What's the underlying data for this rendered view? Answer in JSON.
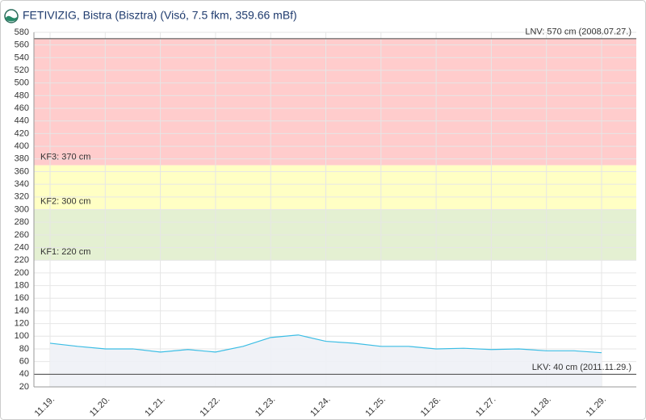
{
  "chart_data": {
    "type": "line",
    "title": "FETIVIZIG, Bistra (Bisztra) (Visó, 7.5 fkm, 359.66 mBf)",
    "categories": [
      "11.19.",
      null,
      "11.20.",
      null,
      "11.21.",
      null,
      "11.22.",
      null,
      "11.23.",
      null,
      "11.24.",
      null,
      "11.25.",
      null,
      "11.26.",
      null,
      "11.27.",
      null,
      "11.28.",
      null,
      "11.29."
    ],
    "series": [
      {
        "color": "#3bbde4",
        "values": [
          89,
          84,
          80,
          80,
          75,
          79,
          75,
          84,
          98,
          102,
          92,
          89,
          84,
          84,
          80,
          81,
          79,
          80,
          77,
          77,
          74
        ]
      }
    ],
    "ylim": [
      20,
      580
    ],
    "yticks": [
      20,
      40,
      60,
      80,
      100,
      120,
      140,
      160,
      180,
      200,
      220,
      240,
      260,
      280,
      300,
      320,
      340,
      360,
      380,
      400,
      420,
      440,
      460,
      480,
      500,
      520,
      540,
      560,
      580
    ],
    "grid": true,
    "bands": [
      {
        "label": "KF3: 370 cm",
        "from": 370,
        "to": 570,
        "color": "#ffcccc"
      },
      {
        "label": "KF2: 300 cm",
        "from": 300,
        "to": 370,
        "color": "#ffffc4"
      },
      {
        "label": "KF1: 220 cm",
        "from": 220,
        "to": 300,
        "color": "#e4f0d2"
      }
    ],
    "reference_lines": [
      {
        "label": "LNV: 570 cm (2008.07.27.)",
        "value": 570
      },
      {
        "label": "LKV: 40 cm (2011.11.29.)",
        "value": 40
      }
    ]
  }
}
